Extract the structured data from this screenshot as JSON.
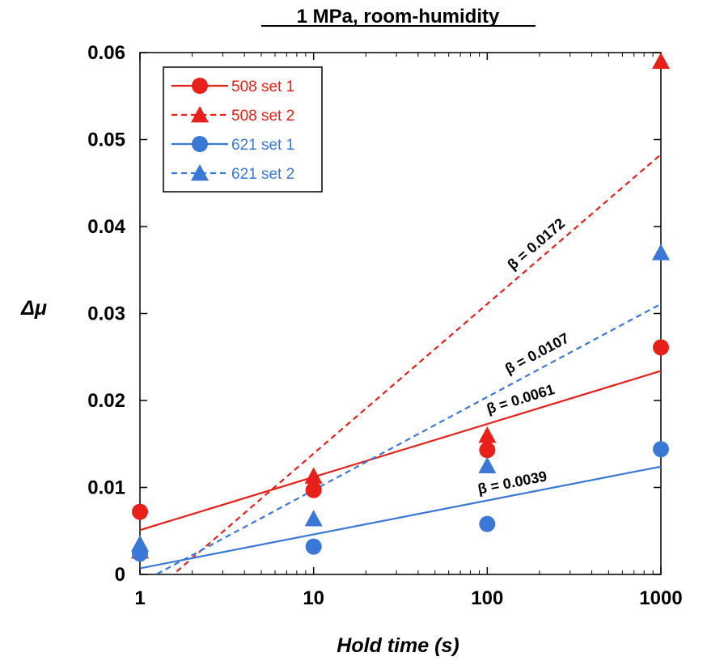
{
  "chart_data": {
    "type": "scatter",
    "title": "1 MPa, room-humidity",
    "xlabel": "Hold time (s)",
    "ylabel": "Δμ",
    "x_scale": "log",
    "xlim": [
      1,
      1000
    ],
    "ylim": [
      0,
      0.06
    ],
    "x_ticks": [
      "1",
      "10",
      "100",
      "1000"
    ],
    "y_ticks": [
      "0",
      "0.01",
      "0.02",
      "0.03",
      "0.04",
      "0.05",
      "0.06"
    ],
    "legend_position": "top-left",
    "series": [
      {
        "name": "508 set 1",
        "color": "#e8201a",
        "marker": "circle",
        "line_style": "solid",
        "x": [
          1,
          10,
          100,
          1000
        ],
        "y": [
          0.0072,
          0.0097,
          0.0143,
          0.0261
        ],
        "fit": {
          "slope": 0.0061,
          "intercept": 0.0051,
          "label": "β = 0.0061"
        }
      },
      {
        "name": "508 set 2",
        "color": "#e8201a",
        "marker": "triangle",
        "line_style": "dashed",
        "x": [
          1,
          10,
          100,
          1000
        ],
        "y": [
          0.0027,
          0.0113,
          0.016,
          0.059
        ],
        "fit": {
          "slope": 0.0172,
          "intercept": -0.0033,
          "label": "β = 0.0172"
        }
      },
      {
        "name": "621 set 1",
        "color": "#3a78d8",
        "marker": "circle",
        "line_style": "solid",
        "x": [
          1,
          10,
          100,
          1000
        ],
        "y": [
          0.0024,
          0.0032,
          0.0058,
          0.0144
        ],
        "fit": {
          "slope": 0.0039,
          "intercept": 0.0007,
          "label": "β = 0.0039"
        }
      },
      {
        "name": "621 set 2",
        "color": "#3a78d8",
        "marker": "triangle",
        "line_style": "dashed",
        "x": [
          1,
          10,
          100,
          1000
        ],
        "y": [
          0.0035,
          0.0064,
          0.0125,
          0.037
        ],
        "fit": {
          "slope": 0.0107,
          "intercept": -0.001,
          "label": "β = 0.0107"
        }
      }
    ]
  }
}
